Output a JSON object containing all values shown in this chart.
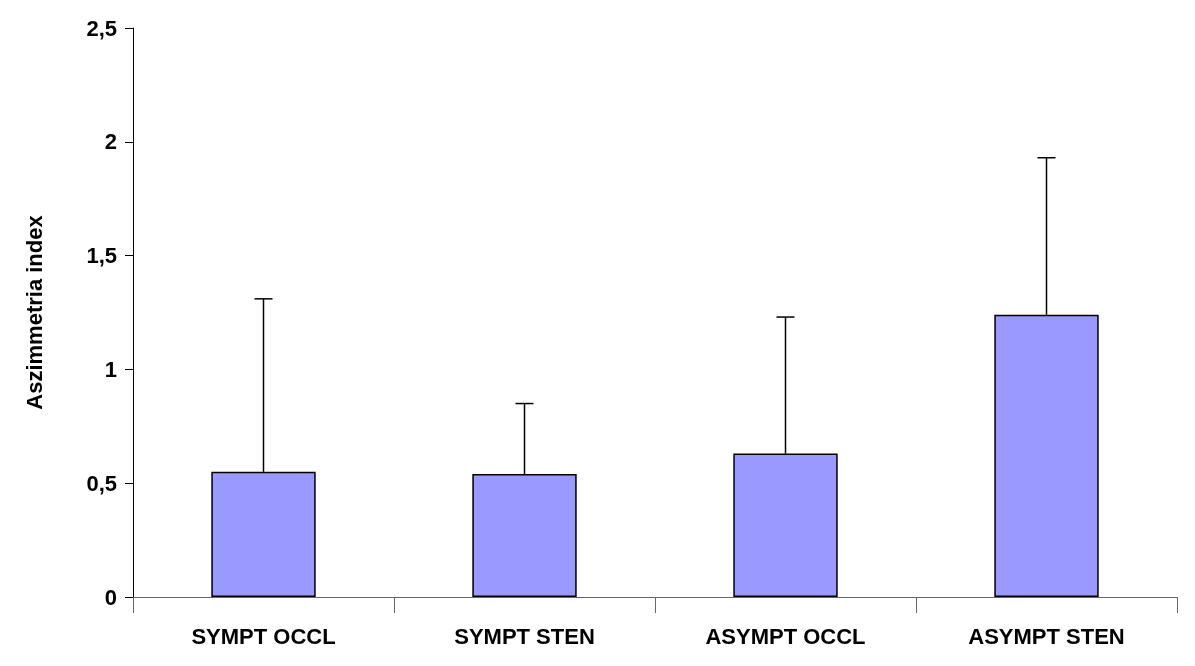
{
  "chart_data": {
    "type": "bar",
    "ylabel": "Aszimmetria index",
    "categories": [
      "SYMPT OCCL",
      "SYMPT STEN",
      "ASYMPT OCCL",
      "ASYMPT STEN"
    ],
    "values": [
      0.55,
      0.54,
      0.63,
      1.24
    ],
    "errors": [
      [
        0.55,
        1.31
      ],
      [
        0.54,
        0.85
      ],
      [
        0.63,
        1.23
      ],
      [
        1.24,
        1.93
      ]
    ],
    "color": "#9999ff",
    "ylim": [
      0,
      2.5
    ],
    "yticks": [
      0,
      {
        "value": 0.5,
        "label": "0,5"
      },
      1,
      {
        "value": 1.5,
        "label": "1,5"
      },
      2,
      {
        "value": 2.5,
        "label": "2,5"
      }
    ],
    "grid": false
  }
}
